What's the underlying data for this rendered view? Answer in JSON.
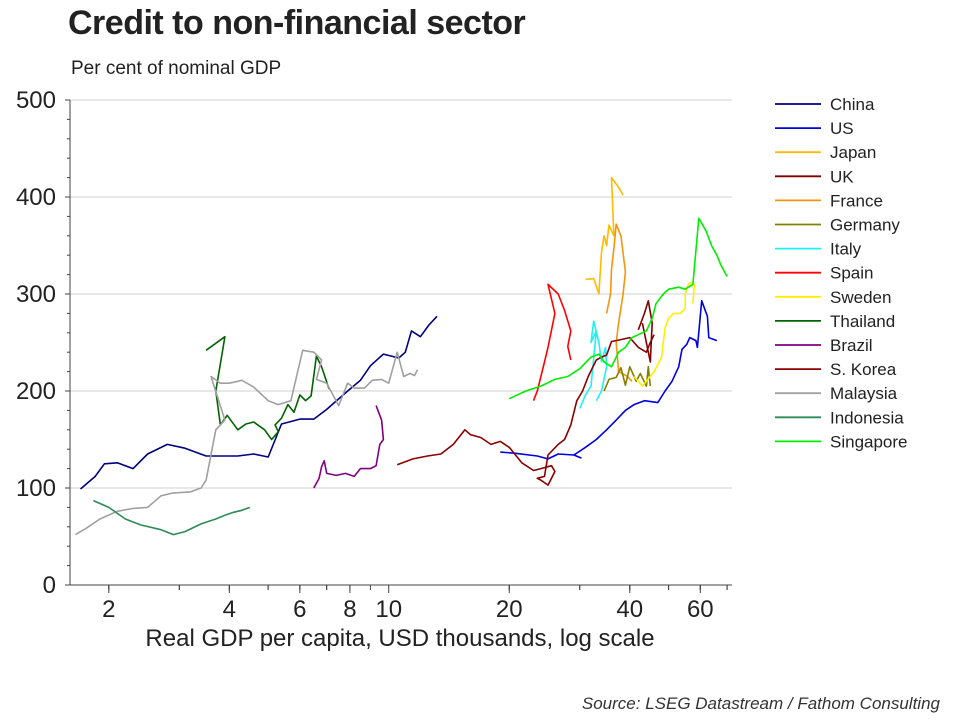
{
  "title": "Credit to non-financial sector",
  "subtitle": "Per cent of nominal GDP",
  "source": "Source: LSEG Datastream / Fathom Consulting",
  "chart_data": {
    "type": "line",
    "xlabel": "Real GDP per capita, USD thousands, log scale",
    "ylabel": "",
    "x_scale": "log",
    "xlim": [
      1.6,
      72
    ],
    "ylim": [
      0,
      500
    ],
    "x_ticks": [
      2,
      4,
      6,
      8,
      10,
      20,
      40,
      60
    ],
    "y_ticks": [
      0,
      100,
      200,
      300,
      400,
      500
    ],
    "grid": "horizontal",
    "legend_position": "right",
    "series": [
      {
        "name": "China",
        "color": "#000080",
        "points": [
          [
            1.7,
            99
          ],
          [
            1.85,
            112
          ],
          [
            1.95,
            125
          ],
          [
            2.1,
            126
          ],
          [
            2.3,
            120
          ],
          [
            2.5,
            135
          ],
          [
            2.8,
            145
          ],
          [
            3.1,
            141
          ],
          [
            3.5,
            133
          ],
          [
            4.2,
            133
          ],
          [
            4.6,
            135
          ],
          [
            5.0,
            132
          ],
          [
            5.4,
            166
          ],
          [
            6.0,
            171
          ],
          [
            6.5,
            171
          ],
          [
            7.0,
            181
          ],
          [
            7.8,
            198
          ],
          [
            8.5,
            211
          ],
          [
            9.0,
            226
          ],
          [
            9.7,
            238
          ],
          [
            10.6,
            234
          ],
          [
            11.0,
            240
          ],
          [
            11.4,
            262
          ],
          [
            12.0,
            256
          ],
          [
            12.6,
            268
          ],
          [
            13.2,
            277
          ]
        ]
      },
      {
        "name": "US",
        "color": "#0000e0",
        "points": [
          [
            19.0,
            137
          ],
          [
            20.5,
            136
          ],
          [
            23.5,
            133
          ],
          [
            25.0,
            130
          ],
          [
            26.5,
            135
          ],
          [
            29.0,
            134
          ],
          [
            30.2,
            131
          ],
          [
            29.0,
            134
          ],
          [
            31.0,
            142
          ],
          [
            33.0,
            150
          ],
          [
            35.0,
            160
          ],
          [
            37.0,
            170
          ],
          [
            39.0,
            180
          ],
          [
            41.0,
            186
          ],
          [
            43.5,
            190
          ],
          [
            47.0,
            188
          ],
          [
            49.0,
            200
          ],
          [
            51.0,
            210
          ],
          [
            53.0,
            225
          ],
          [
            54.0,
            243
          ],
          [
            55.5,
            248
          ],
          [
            56.5,
            255
          ],
          [
            58.5,
            252
          ],
          [
            59.0,
            245
          ],
          [
            60.5,
            293
          ],
          [
            62.5,
            277
          ],
          [
            63.0,
            255
          ],
          [
            66.0,
            252
          ]
        ]
      },
      {
        "name": "Japan",
        "color": "#ffbb00",
        "points": [
          [
            31.0,
            315
          ],
          [
            32.5,
            316
          ],
          [
            33.5,
            300
          ],
          [
            34.0,
            343
          ],
          [
            34.5,
            360
          ],
          [
            35.0,
            350
          ],
          [
            35.5,
            371
          ],
          [
            36.5,
            360
          ],
          [
            36.0,
            420
          ],
          [
            37.5,
            410
          ],
          [
            38.5,
            402
          ]
        ]
      },
      {
        "name": "UK",
        "color": "#800000",
        "points": [
          [
            42.0,
            263
          ],
          [
            43.5,
            280
          ],
          [
            44.5,
            293
          ],
          [
            45.5,
            270
          ],
          [
            45.0,
            230
          ],
          [
            43.0,
            270
          ]
        ]
      },
      {
        "name": "France",
        "color": "#f5940f",
        "points": [
          [
            35.0,
            280
          ],
          [
            35.8,
            300
          ],
          [
            36.0,
            325
          ],
          [
            36.5,
            347
          ],
          [
            37.0,
            372
          ],
          [
            38.0,
            360
          ],
          [
            39.0,
            323
          ],
          [
            38.5,
            300
          ],
          [
            37.5,
            270
          ],
          [
            37.0,
            250
          ],
          [
            37.5,
            220
          ],
          [
            39.5,
            215
          ],
          [
            40.5,
            210
          ]
        ]
      },
      {
        "name": "Germany",
        "color": "#808000",
        "points": [
          [
            34.5,
            200
          ],
          [
            35.5,
            212
          ],
          [
            37.0,
            214
          ],
          [
            38.0,
            224
          ],
          [
            39.0,
            206
          ],
          [
            40.0,
            225
          ],
          [
            41.5,
            210
          ],
          [
            42.5,
            218
          ],
          [
            44.0,
            205
          ],
          [
            44.5,
            225
          ],
          [
            45.0,
            205
          ]
        ]
      },
      {
        "name": "Italy",
        "color": "#20f0f0",
        "points": [
          [
            30.0,
            182
          ],
          [
            31.0,
            196
          ],
          [
            32.0,
            205
          ],
          [
            33.0,
            262
          ],
          [
            32.0,
            250
          ],
          [
            32.5,
            272
          ],
          [
            33.5,
            250
          ],
          [
            34.0,
            230
          ],
          [
            34.8,
            245
          ],
          [
            35.0,
            225
          ],
          [
            34.0,
            200
          ],
          [
            33.0,
            190
          ]
        ]
      },
      {
        "name": "Spain",
        "color": "#ff0000",
        "points": [
          [
            23.0,
            190
          ],
          [
            23.5,
            200
          ],
          [
            24.5,
            230
          ],
          [
            25.0,
            245
          ],
          [
            26.0,
            280
          ],
          [
            25.0,
            310
          ],
          [
            26.5,
            300
          ],
          [
            27.5,
            283
          ],
          [
            28.5,
            262
          ],
          [
            28.0,
            246
          ],
          [
            28.5,
            232
          ]
        ]
      },
      {
        "name": "Sweden",
        "color": "#ffee00",
        "points": [
          [
            41.0,
            215
          ],
          [
            43.0,
            205
          ],
          [
            46.0,
            220
          ],
          [
            48.0,
            235
          ],
          [
            49.0,
            265
          ],
          [
            50.0,
            275
          ],
          [
            51.5,
            280
          ],
          [
            53.5,
            280
          ],
          [
            55.0,
            285
          ],
          [
            55.0,
            300
          ],
          [
            56.0,
            310
          ],
          [
            57.0,
            312
          ],
          [
            58.0,
            310
          ],
          [
            57.5,
            290
          ]
        ]
      },
      {
        "name": "Thailand",
        "color": "#006400",
        "points": [
          [
            3.5,
            242
          ],
          [
            3.9,
            256
          ],
          [
            3.7,
            200
          ],
          [
            3.8,
            165
          ],
          [
            3.95,
            175
          ],
          [
            4.2,
            160
          ],
          [
            4.4,
            166
          ],
          [
            4.6,
            168
          ],
          [
            4.9,
            160
          ],
          [
            5.1,
            150
          ],
          [
            5.3,
            158
          ],
          [
            5.2,
            165
          ],
          [
            5.4,
            172
          ],
          [
            5.6,
            186
          ],
          [
            5.8,
            178
          ],
          [
            6.0,
            196
          ],
          [
            6.2,
            190
          ],
          [
            6.4,
            195
          ],
          [
            6.6,
            236
          ],
          [
            6.8,
            225
          ],
          [
            7.1,
            202
          ]
        ]
      },
      {
        "name": "Brazil",
        "color": "#800080",
        "points": [
          [
            6.5,
            100
          ],
          [
            6.7,
            110
          ],
          [
            6.8,
            122
          ],
          [
            6.9,
            128
          ],
          [
            7.0,
            115
          ],
          [
            7.4,
            113
          ],
          [
            7.8,
            115
          ],
          [
            8.2,
            112
          ],
          [
            8.5,
            120
          ],
          [
            9.0,
            120
          ],
          [
            9.3,
            123
          ],
          [
            9.5,
            145
          ],
          [
            9.7,
            150
          ],
          [
            9.6,
            170
          ],
          [
            9.3,
            185
          ]
        ]
      },
      {
        "name": "S. Korea",
        "color": "#8b0000",
        "points": [
          [
            10.5,
            124
          ],
          [
            11.5,
            130
          ],
          [
            12.5,
            133
          ],
          [
            13.5,
            135
          ],
          [
            14.5,
            145
          ],
          [
            15.5,
            160
          ],
          [
            16.0,
            155
          ],
          [
            17.0,
            152
          ],
          [
            18.0,
            145
          ],
          [
            19.0,
            148
          ],
          [
            20.0,
            142
          ],
          [
            21.5,
            126
          ],
          [
            23.0,
            118
          ],
          [
            24.0,
            120
          ],
          [
            25.5,
            123
          ],
          [
            26.0,
            117
          ],
          [
            25.0,
            103
          ],
          [
            24.0,
            108
          ],
          [
            23.5,
            110
          ],
          [
            24.5,
            112
          ],
          [
            25.0,
            134
          ],
          [
            26.5,
            145
          ],
          [
            27.5,
            150
          ],
          [
            28.5,
            165
          ],
          [
            29.5,
            190
          ],
          [
            30.5,
            200
          ],
          [
            31.5,
            215
          ],
          [
            33.0,
            232
          ],
          [
            34.0,
            235
          ],
          [
            35.0,
            237
          ],
          [
            36.0,
            251
          ],
          [
            38.0,
            253
          ],
          [
            40.0,
            255
          ],
          [
            42.0,
            245
          ],
          [
            44.0,
            240
          ],
          [
            45.0,
            250
          ],
          [
            46.0,
            258
          ]
        ]
      },
      {
        "name": "Malaysia",
        "color": "#a0a0a0",
        "points": [
          [
            1.65,
            52
          ],
          [
            1.75,
            58
          ],
          [
            1.9,
            68
          ],
          [
            2.1,
            76
          ],
          [
            2.3,
            79
          ],
          [
            2.5,
            80
          ],
          [
            2.7,
            92
          ],
          [
            2.9,
            95
          ],
          [
            3.2,
            96
          ],
          [
            3.4,
            100
          ],
          [
            3.5,
            108
          ],
          [
            3.7,
            160
          ],
          [
            3.9,
            170
          ],
          [
            3.6,
            215
          ],
          [
            3.8,
            208
          ],
          [
            4.0,
            208
          ],
          [
            4.3,
            211
          ],
          [
            4.6,
            204
          ],
          [
            5.0,
            190
          ],
          [
            5.3,
            186
          ],
          [
            5.7,
            190
          ],
          [
            6.1,
            242
          ],
          [
            6.5,
            240
          ],
          [
            6.8,
            232
          ],
          [
            6.6,
            212
          ],
          [
            7.0,
            208
          ],
          [
            7.5,
            185
          ],
          [
            7.9,
            208
          ],
          [
            8.2,
            203
          ],
          [
            8.7,
            203
          ],
          [
            9.1,
            211
          ],
          [
            9.6,
            212
          ],
          [
            10.0,
            208
          ],
          [
            10.5,
            240
          ],
          [
            10.9,
            215
          ],
          [
            11.3,
            218
          ],
          [
            11.6,
            216
          ],
          [
            11.8,
            222
          ]
        ]
      },
      {
        "name": "Indonesia",
        "color": "#2e8b57",
        "points": [
          [
            1.83,
            87
          ],
          [
            2.0,
            80
          ],
          [
            2.2,
            68
          ],
          [
            2.4,
            62
          ],
          [
            2.7,
            57
          ],
          [
            2.9,
            52
          ],
          [
            3.1,
            55
          ],
          [
            3.4,
            63
          ],
          [
            3.7,
            68
          ],
          [
            3.9,
            72
          ],
          [
            4.1,
            75
          ],
          [
            4.3,
            77
          ],
          [
            4.5,
            80
          ]
        ]
      },
      {
        "name": "Singapore",
        "color": "#00ee00",
        "points": [
          [
            20.0,
            192
          ],
          [
            22.0,
            200
          ],
          [
            24.0,
            205
          ],
          [
            26.0,
            212
          ],
          [
            28.0,
            215
          ],
          [
            30.0,
            223
          ],
          [
            32.0,
            235
          ],
          [
            33.5,
            238
          ],
          [
            34.5,
            230
          ],
          [
            36.0,
            225
          ],
          [
            37.5,
            240
          ],
          [
            39.0,
            245
          ],
          [
            40.5,
            255
          ],
          [
            42.0,
            258
          ],
          [
            44.0,
            262
          ],
          [
            45.5,
            275
          ],
          [
            46.5,
            290
          ],
          [
            48.5,
            300
          ],
          [
            50.0,
            305
          ],
          [
            53.0,
            307
          ],
          [
            55.0,
            305
          ],
          [
            57.5,
            310
          ],
          [
            59.5,
            378
          ],
          [
            62.0,
            365
          ],
          [
            64.0,
            350
          ],
          [
            66.0,
            340
          ],
          [
            67.5,
            330
          ],
          [
            70.0,
            318
          ]
        ]
      }
    ]
  }
}
